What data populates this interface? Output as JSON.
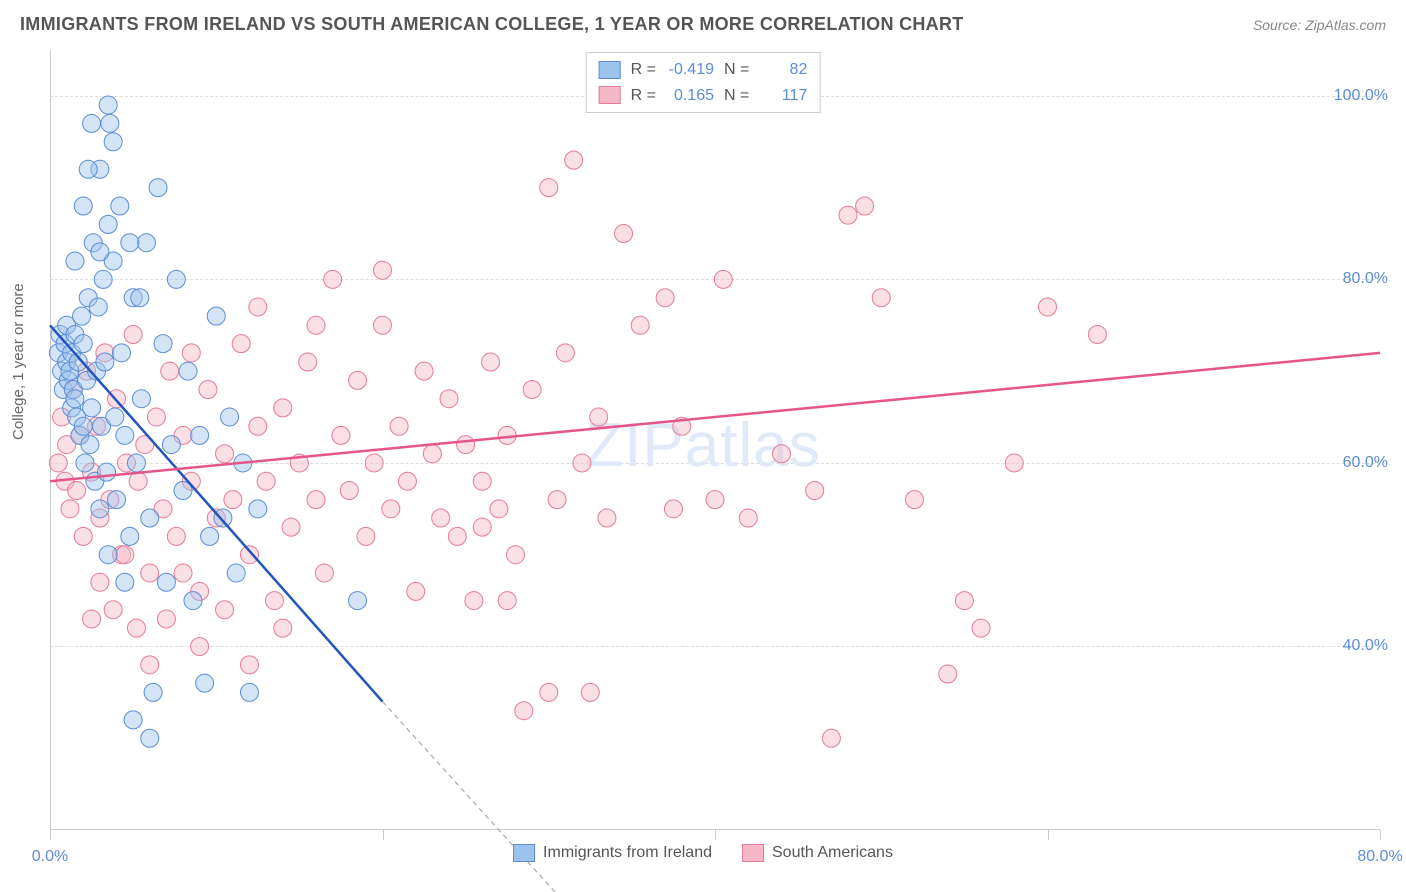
{
  "title": "IMMIGRANTS FROM IRELAND VS SOUTH AMERICAN COLLEGE, 1 YEAR OR MORE CORRELATION CHART",
  "source": "Source: ZipAtlas.com",
  "y_axis_label": "College, 1 year or more",
  "watermark": "ZIPatlas",
  "chart": {
    "type": "scatter",
    "xlim": [
      0,
      80
    ],
    "ylim": [
      20,
      105
    ],
    "x_ticks": [
      0,
      20,
      40,
      60,
      80
    ],
    "x_tick_labels": [
      "0.0%",
      "",
      "",
      "",
      "80.0%"
    ],
    "x_tick_show_all": true,
    "y_ticks": [
      40,
      60,
      80,
      100
    ],
    "y_tick_labels": [
      "40.0%",
      "60.0%",
      "80.0%",
      "100.0%"
    ],
    "grid_color": "#dddddd",
    "border_color": "#cccccc",
    "background_color": "#ffffff",
    "marker_radius": 9,
    "marker_opacity": 0.45,
    "line_width": 2.5,
    "series": [
      {
        "name": "Immigrants from Ireland",
        "color_fill": "#9cc3eb",
        "color_stroke": "#5b8dd6",
        "line_color": "#2255bb",
        "R": "-0.419",
        "N": "82",
        "trend": {
          "x1": 0,
          "y1": 75,
          "x2": 20,
          "y2": 34,
          "dashed_extend_x2": 32,
          "dashed_extend_y2": 10
        },
        "points": [
          [
            0.5,
            72
          ],
          [
            0.6,
            74
          ],
          [
            0.7,
            70
          ],
          [
            0.8,
            68
          ],
          [
            0.9,
            73
          ],
          [
            1.0,
            75
          ],
          [
            1.0,
            71
          ],
          [
            1.1,
            69
          ],
          [
            1.2,
            70
          ],
          [
            1.3,
            66
          ],
          [
            1.3,
            72
          ],
          [
            1.4,
            68
          ],
          [
            1.5,
            67
          ],
          [
            1.5,
            74
          ],
          [
            1.6,
            65
          ],
          [
            1.7,
            71
          ],
          [
            1.8,
            63
          ],
          [
            1.9,
            76
          ],
          [
            2.0,
            64
          ],
          [
            2.0,
            73
          ],
          [
            2.1,
            60
          ],
          [
            2.2,
            69
          ],
          [
            2.3,
            78
          ],
          [
            2.4,
            62
          ],
          [
            2.5,
            66
          ],
          [
            2.6,
            84
          ],
          [
            2.7,
            58
          ],
          [
            2.8,
            70
          ],
          [
            2.9,
            77
          ],
          [
            3.0,
            55
          ],
          [
            3.0,
            92
          ],
          [
            3.1,
            64
          ],
          [
            3.2,
            80
          ],
          [
            3.3,
            71
          ],
          [
            3.4,
            59
          ],
          [
            3.5,
            99
          ],
          [
            3.6,
            97
          ],
          [
            3.8,
            82
          ],
          [
            3.9,
            65
          ],
          [
            4.0,
            56
          ],
          [
            4.2,
            88
          ],
          [
            4.3,
            72
          ],
          [
            4.5,
            63
          ],
          [
            4.8,
            52
          ],
          [
            5.0,
            78
          ],
          [
            5.2,
            60
          ],
          [
            5.5,
            67
          ],
          [
            5.8,
            84
          ],
          [
            6.0,
            54
          ],
          [
            6.2,
            35
          ],
          [
            6.5,
            90
          ],
          [
            6.8,
            73
          ],
          [
            7.0,
            47
          ],
          [
            7.3,
            62
          ],
          [
            7.6,
            80
          ],
          [
            8.0,
            57
          ],
          [
            8.3,
            70
          ],
          [
            8.6,
            45
          ],
          [
            9.0,
            63
          ],
          [
            9.3,
            36
          ],
          [
            9.6,
            52
          ],
          [
            10.0,
            76
          ],
          [
            10.4,
            54
          ],
          [
            10.8,
            65
          ],
          [
            11.2,
            48
          ],
          [
            11.6,
            60
          ],
          [
            12.0,
            35
          ],
          [
            12.5,
            55
          ],
          [
            5.0,
            32
          ],
          [
            6.0,
            30
          ],
          [
            3.5,
            50
          ],
          [
            4.5,
            47
          ],
          [
            2.5,
            97
          ],
          [
            3.8,
            95
          ],
          [
            1.5,
            82
          ],
          [
            2.0,
            88
          ],
          [
            2.3,
            92
          ],
          [
            3.0,
            83
          ],
          [
            18.5,
            45
          ],
          [
            5.4,
            78
          ],
          [
            4.8,
            84
          ],
          [
            3.5,
            86
          ]
        ]
      },
      {
        "name": "South Americans",
        "color_fill": "#f4b8c6",
        "color_stroke": "#e77a97",
        "line_color": "#e65589",
        "R": "0.165",
        "N": "117",
        "trend": {
          "x1": 0,
          "y1": 58,
          "x2": 80,
          "y2": 72
        },
        "points": [
          [
            0.5,
            60
          ],
          [
            0.7,
            65
          ],
          [
            0.9,
            58
          ],
          [
            1.0,
            62
          ],
          [
            1.2,
            55
          ],
          [
            1.4,
            68
          ],
          [
            1.6,
            57
          ],
          [
            1.8,
            63
          ],
          [
            2.0,
            52
          ],
          [
            2.2,
            70
          ],
          [
            2.5,
            59
          ],
          [
            2.8,
            64
          ],
          [
            3.0,
            54
          ],
          [
            3.3,
            72
          ],
          [
            3.6,
            56
          ],
          [
            4.0,
            67
          ],
          [
            4.3,
            50
          ],
          [
            4.6,
            60
          ],
          [
            5.0,
            74
          ],
          [
            5.3,
            58
          ],
          [
            5.7,
            62
          ],
          [
            6.0,
            48
          ],
          [
            6.4,
            65
          ],
          [
            6.8,
            55
          ],
          [
            7.2,
            70
          ],
          [
            7.6,
            52
          ],
          [
            8.0,
            63
          ],
          [
            8.5,
            58
          ],
          [
            9.0,
            46
          ],
          [
            9.5,
            68
          ],
          [
            10.0,
            54
          ],
          [
            10.5,
            61
          ],
          [
            11.0,
            56
          ],
          [
            11.5,
            73
          ],
          [
            12.0,
            50
          ],
          [
            12.5,
            64
          ],
          [
            13.0,
            58
          ],
          [
            13.5,
            45
          ],
          [
            14.0,
            66
          ],
          [
            14.5,
            53
          ],
          [
            15.0,
            60
          ],
          [
            15.5,
            71
          ],
          [
            16.0,
            56
          ],
          [
            16.5,
            48
          ],
          [
            17.0,
            80
          ],
          [
            17.5,
            63
          ],
          [
            18.0,
            57
          ],
          [
            18.5,
            69
          ],
          [
            19.0,
            52
          ],
          [
            19.5,
            60
          ],
          [
            20.0,
            75
          ],
          [
            20.5,
            55
          ],
          [
            21.0,
            64
          ],
          [
            21.5,
            58
          ],
          [
            22.0,
            46
          ],
          [
            22.5,
            70
          ],
          [
            23.0,
            61
          ],
          [
            23.5,
            54
          ],
          [
            24.0,
            67
          ],
          [
            24.5,
            52
          ],
          [
            25.0,
            62
          ],
          [
            25.5,
            45
          ],
          [
            26.0,
            58
          ],
          [
            26.5,
            71
          ],
          [
            27.0,
            55
          ],
          [
            27.5,
            63
          ],
          [
            28.0,
            50
          ],
          [
            28.5,
            33
          ],
          [
            29.0,
            68
          ],
          [
            30.0,
            90
          ],
          [
            30.5,
            56
          ],
          [
            31.5,
            93
          ],
          [
            31.0,
            72
          ],
          [
            32.0,
            60
          ],
          [
            32.5,
            35
          ],
          [
            33.0,
            65
          ],
          [
            33.5,
            54
          ],
          [
            34.5,
            85
          ],
          [
            20.0,
            81
          ],
          [
            26.0,
            53
          ],
          [
            37.5,
            55
          ],
          [
            37.0,
            78
          ],
          [
            38.0,
            64
          ],
          [
            35.5,
            75
          ],
          [
            40.0,
            56
          ],
          [
            27.5,
            45
          ],
          [
            42.0,
            54
          ],
          [
            30.0,
            35
          ],
          [
            44.0,
            61
          ],
          [
            40.5,
            80
          ],
          [
            46.0,
            57
          ],
          [
            47.0,
            30
          ],
          [
            48.0,
            87
          ],
          [
            49.0,
            88
          ],
          [
            50.0,
            78
          ],
          [
            52.0,
            56
          ],
          [
            54.0,
            37
          ],
          [
            55.0,
            45
          ],
          [
            58.0,
            60
          ],
          [
            60.0,
            77
          ],
          [
            63.0,
            74
          ],
          [
            56.0,
            42
          ],
          [
            2.5,
            43
          ],
          [
            3.0,
            47
          ],
          [
            3.8,
            44
          ],
          [
            4.5,
            50
          ],
          [
            5.2,
            42
          ],
          [
            6.0,
            38
          ],
          [
            7.0,
            43
          ],
          [
            8.0,
            48
          ],
          [
            9.0,
            40
          ],
          [
            10.5,
            44
          ],
          [
            12.0,
            38
          ],
          [
            14.0,
            42
          ],
          [
            8.5,
            72
          ],
          [
            12.5,
            77
          ],
          [
            16.0,
            75
          ]
        ]
      }
    ]
  },
  "legend_top": {
    "rows": [
      {
        "swatch_fill": "#9cc3eb",
        "swatch_stroke": "#5b8dd6",
        "R_label": "R =",
        "R": "-0.419",
        "N_label": "N =",
        "N": "82"
      },
      {
        "swatch_fill": "#f4b8c6",
        "swatch_stroke": "#e77a97",
        "R_label": "R =",
        "R": "0.165",
        "N_label": "N =",
        "N": "117"
      }
    ]
  },
  "legend_bottom": {
    "items": [
      {
        "swatch_fill": "#9cc3eb",
        "swatch_stroke": "#5b8dd6",
        "label": "Immigrants from Ireland"
      },
      {
        "swatch_fill": "#f4b8c6",
        "swatch_stroke": "#e77a97",
        "label": "South Americans"
      }
    ]
  }
}
